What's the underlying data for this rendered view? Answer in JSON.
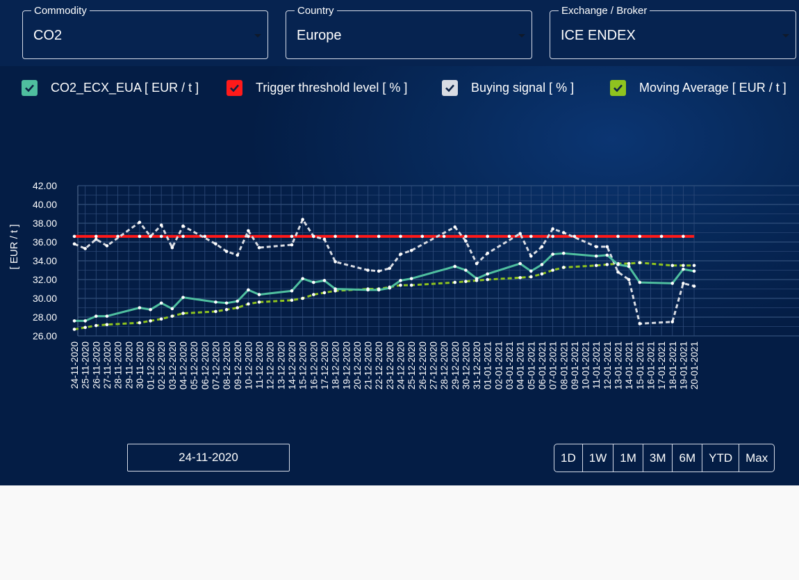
{
  "filters": [
    {
      "label": "Commodity",
      "value": "CO2"
    },
    {
      "label": "Country",
      "value": "Europe"
    },
    {
      "label": "Exchange / Broker",
      "value": "ICE ENDEX"
    }
  ],
  "legend": [
    {
      "label": "CO2_ECX_EUA [ EUR / t ]",
      "color": "#4fbf9f"
    },
    {
      "label": "Trigger threshold level [ % ]",
      "color": "#ff1a1a"
    },
    {
      "label": "Buying signal [ % ]",
      "color": "#d9dce3"
    },
    {
      "label": "Moving Average [ EUR / t ]",
      "color": "#8fc31f"
    }
  ],
  "date_field": {
    "value": "24-11-2020"
  },
  "range_buttons": [
    "1D",
    "1W",
    "1M",
    "3M",
    "6M",
    "YTD",
    "Max"
  ],
  "chart_data": {
    "type": "line",
    "ylabel": "[ EUR / t ]",
    "ylim": [
      26,
      42
    ],
    "yticks": [
      "26.00",
      "28.00",
      "30.00",
      "32.00",
      "34.00",
      "36.00",
      "38.00",
      "40.00",
      "42.00"
    ],
    "grid": true,
    "x": [
      "24-11-2020",
      "25-11-2020",
      "26-11-2020",
      "27-11-2020",
      "28-11-2020",
      "29-11-2020",
      "30-11-2020",
      "01-12-2020",
      "02-12-2020",
      "03-12-2020",
      "04-12-2020",
      "05-12-2020",
      "06-12-2020",
      "07-12-2020",
      "08-12-2020",
      "09-12-2020",
      "10-12-2020",
      "11-12-2020",
      "12-12-2020",
      "13-12-2020",
      "14-12-2020",
      "15-12-2020",
      "16-12-2020",
      "17-12-2020",
      "18-12-2020",
      "19-12-2020",
      "20-12-2020",
      "21-12-2020",
      "22-12-2020",
      "23-12-2020",
      "24-12-2020",
      "25-12-2020",
      "26-12-2020",
      "27-12-2020",
      "28-12-2020",
      "29-12-2020",
      "30-12-2020",
      "31-12-2020",
      "01-01-2021",
      "02-01-2021",
      "03-01-2021",
      "04-01-2021",
      "05-01-2021",
      "06-01-2021",
      "07-01-2021",
      "08-01-2021",
      "09-01-2021",
      "10-01-2021",
      "11-01-2021",
      "12-01-2021",
      "13-01-2021",
      "14-01-2021",
      "15-01-2021",
      "16-01-2021",
      "17-01-2021",
      "18-01-2021",
      "19-01-2021",
      "20-01-2021"
    ],
    "series": [
      {
        "name": "CO2_ECX_EUA [ EUR / t ]",
        "color": "#4fbf9f",
        "style": "solid",
        "values": [
          27.6,
          27.6,
          28.1,
          28.1,
          null,
          null,
          29.0,
          28.8,
          29.5,
          28.9,
          30.1,
          null,
          null,
          29.6,
          29.5,
          29.7,
          30.9,
          30.4,
          null,
          null,
          30.8,
          32.1,
          31.7,
          31.9,
          31.0,
          null,
          null,
          30.9,
          30.9,
          31.1,
          31.9,
          32.1,
          null,
          null,
          null,
          33.4,
          33.0,
          32.1,
          32.6,
          null,
          null,
          33.7,
          32.9,
          33.6,
          34.7,
          34.8,
          null,
          null,
          34.5,
          34.6,
          33.6,
          33.4,
          31.7,
          null,
          null,
          31.6,
          33.1,
          32.9
        ]
      },
      {
        "name": "Trigger threshold level [ % ]",
        "color": "#ff1a1a",
        "style": "solid",
        "values": [
          36.6,
          36.6,
          36.6,
          36.6,
          36.6,
          36.6,
          36.6,
          36.6,
          36.6,
          36.6,
          36.6,
          36.6,
          36.6,
          36.6,
          36.6,
          36.6,
          36.6,
          36.6,
          36.6,
          36.6,
          36.6,
          36.6,
          36.6,
          36.6,
          36.6,
          36.6,
          36.6,
          36.6,
          36.6,
          36.6,
          36.6,
          36.6,
          36.6,
          36.6,
          36.6,
          36.6,
          36.6,
          36.6,
          36.6,
          36.6,
          36.6,
          36.6,
          36.6,
          36.6,
          36.6,
          36.6,
          36.6,
          36.6,
          36.6,
          36.6,
          36.6,
          36.6,
          36.6,
          36.6,
          36.6,
          36.6,
          36.6,
          36.6
        ]
      },
      {
        "name": "Buying signal [ % ]",
        "color": "#d9dce3",
        "style": "dashed",
        "values": [
          35.8,
          35.3,
          36.3,
          35.6,
          null,
          null,
          38.1,
          36.6,
          37.8,
          35.4,
          37.7,
          null,
          null,
          35.8,
          35.0,
          34.6,
          37.2,
          35.4,
          null,
          null,
          35.7,
          38.4,
          36.6,
          36.3,
          33.9,
          null,
          null,
          33.0,
          32.9,
          33.2,
          34.7,
          35.1,
          null,
          null,
          null,
          37.6,
          36.1,
          33.7,
          34.8,
          null,
          null,
          36.9,
          34.5,
          35.5,
          37.4,
          37.0,
          null,
          null,
          35.5,
          35.5,
          32.8,
          32.0,
          27.3,
          null,
          null,
          27.5,
          31.6,
          31.3
        ]
      },
      {
        "name": "Moving Average [ EUR / t ]",
        "color": "#8fc31f",
        "style": "dashed",
        "values": [
          26.7,
          26.9,
          27.1,
          27.2,
          null,
          null,
          27.4,
          27.6,
          27.8,
          28.1,
          28.4,
          null,
          null,
          28.6,
          28.8,
          29.0,
          29.4,
          29.6,
          null,
          null,
          29.8,
          30.0,
          30.4,
          30.6,
          30.8,
          null,
          null,
          31.0,
          31.0,
          31.2,
          31.4,
          31.4,
          null,
          null,
          null,
          31.7,
          31.8,
          31.9,
          32.0,
          null,
          null,
          32.2,
          32.3,
          32.6,
          33.0,
          33.3,
          null,
          null,
          33.5,
          33.6,
          33.7,
          33.7,
          33.8,
          null,
          null,
          33.5,
          33.5,
          33.5
        ]
      }
    ]
  }
}
